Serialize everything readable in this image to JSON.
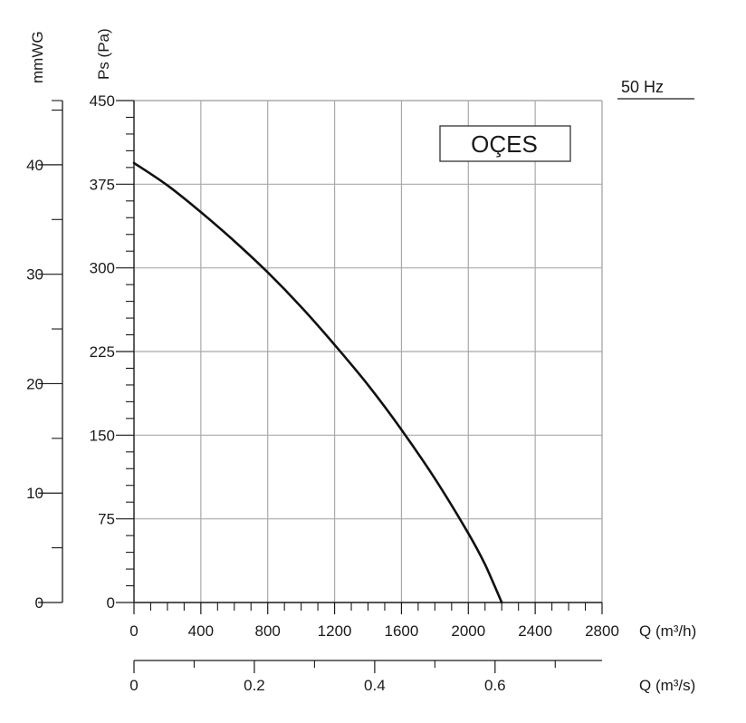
{
  "chart_data": {
    "type": "line",
    "legend_label": "OÇES",
    "frequency_label": "50 Hz",
    "grid": true,
    "x_axis_flow_h": {
      "label": "Q (m³/h)",
      "range": [
        0,
        2800
      ],
      "ticks": [
        "0",
        "400",
        "800",
        "1200",
        "1600",
        "2000",
        "2400",
        "2800"
      ]
    },
    "x_axis_flow_s": {
      "label": "Q (m³/s)",
      "range": [
        0,
        0.7778
      ],
      "ticks": [
        "0",
        "0.2",
        "0.4",
        "0.6"
      ]
    },
    "y_axis_pa": {
      "label": "Ps (Pa)",
      "range": [
        0,
        450
      ],
      "ticks": [
        "0",
        "75",
        "150",
        "225",
        "300",
        "375",
        "450"
      ]
    },
    "y_axis_mmwg": {
      "label": "mmWG",
      "range": [
        0,
        45.87
      ],
      "ticks": [
        "0",
        "10",
        "20",
        "30",
        "40"
      ]
    },
    "series": [
      {
        "x": [
          0,
          200,
          400,
          600,
          800,
          1000,
          1200,
          1400,
          1600,
          1800,
          2000,
          2100,
          2200
        ],
        "y": [
          394,
          374,
          350,
          324,
          296,
          265,
          231,
          195,
          155,
          111,
          62,
          34,
          0
        ]
      }
    ]
  }
}
